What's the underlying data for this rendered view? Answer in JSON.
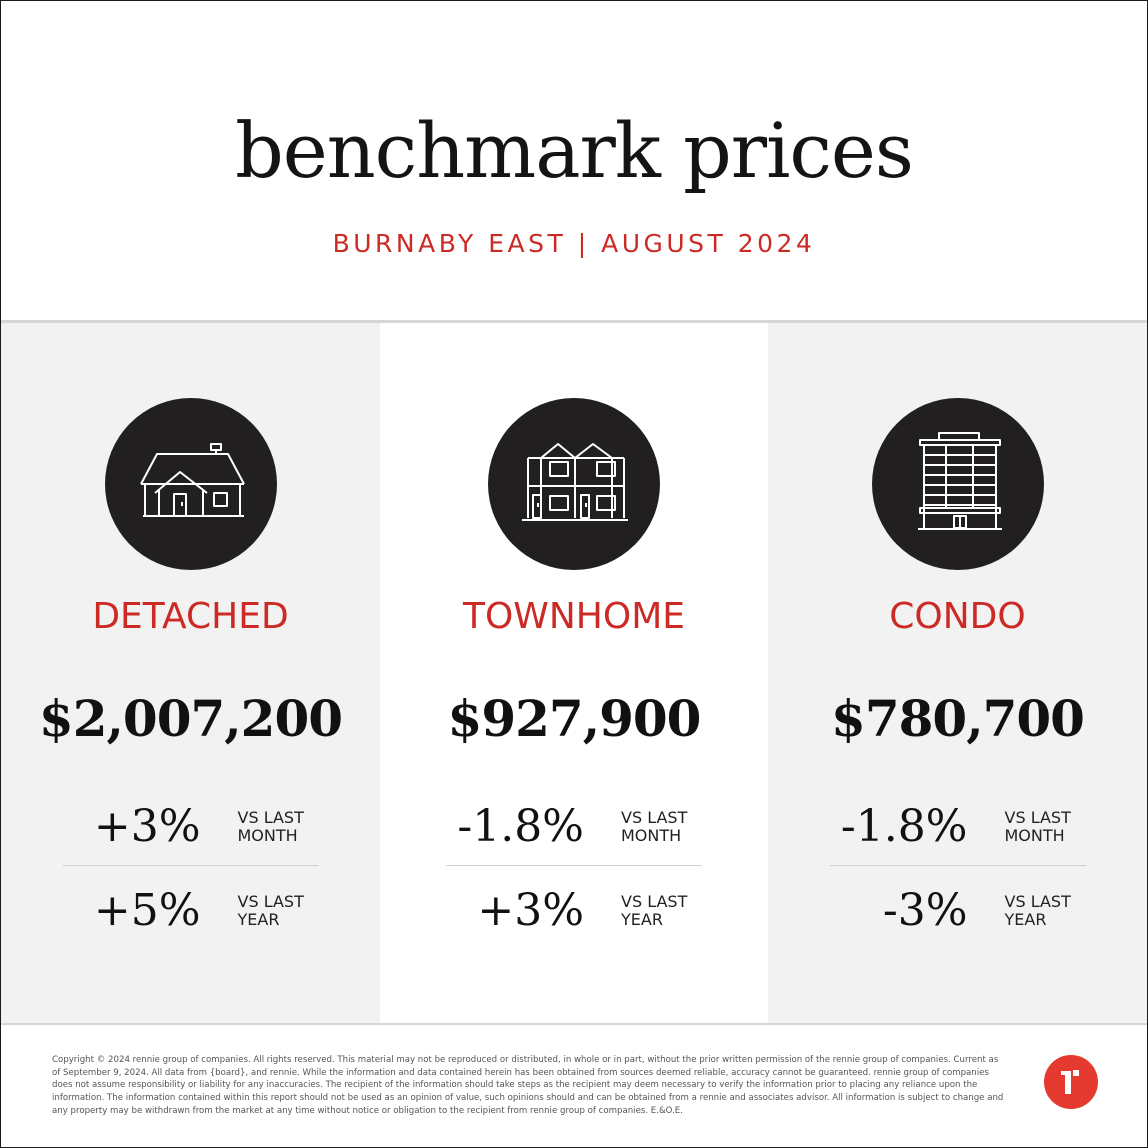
{
  "header": {
    "title": "benchmark prices",
    "subtitle": "BURNABY EAST | AUGUST 2024"
  },
  "property_types": [
    {
      "name": "DETACHED",
      "icon": "detached-house-icon",
      "price": "$2,007,200",
      "month_change": "+3%",
      "month_label_line1": "VS LAST",
      "month_label_line2": "MONTH",
      "year_change": "+5%",
      "year_label_line1": "VS LAST",
      "year_label_line2": "YEAR"
    },
    {
      "name": "TOWNHOME",
      "icon": "townhome-icon",
      "price": "$927,900",
      "month_change": "-1.8%",
      "month_label_line1": "VS LAST",
      "month_label_line2": "MONTH",
      "year_change": "+3%",
      "year_label_line1": "VS LAST",
      "year_label_line2": "YEAR"
    },
    {
      "name": "CONDO",
      "icon": "condo-building-icon",
      "price": "$780,700",
      "month_change": "-1.8%",
      "month_label_line1": "VS LAST",
      "month_label_line2": "MONTH",
      "year_change": "-3%",
      "year_label_line1": "VS LAST",
      "year_label_line2": "YEAR"
    }
  ],
  "footer": {
    "disclaimer": "Copyright © 2024 rennie group of companies. All rights reserved. This material may not be reproduced or distributed, in whole or in part, without the prior written permission of the rennie group of companies. Current as of September 9, 2024. All data from {board}, and rennie. While the information and data contained herein has been obtained from sources deemed reliable, accuracy cannot be guaranteed. rennie group of companies does not assume responsibility or liability for any inaccuracies. The recipient of the information should take steps as the recipient may deem necessary to verify the information prior to placing any reliance upon the information. The information contained within this report should not be used as an opinion of value, such opinions should and can be obtained from a rennie and associates advisor. All information is subject to change and any property may be withdrawn from the market at any time without notice or obligation to the recipient from rennie group of companies. E.&O.E.",
    "logo": "rennie-logo-icon"
  },
  "colors": {
    "accent_red": "#cc2a25",
    "icon_circle": "#221f20",
    "shaded_column": "#f2f2f2",
    "logo_red": "#e53a2f"
  }
}
